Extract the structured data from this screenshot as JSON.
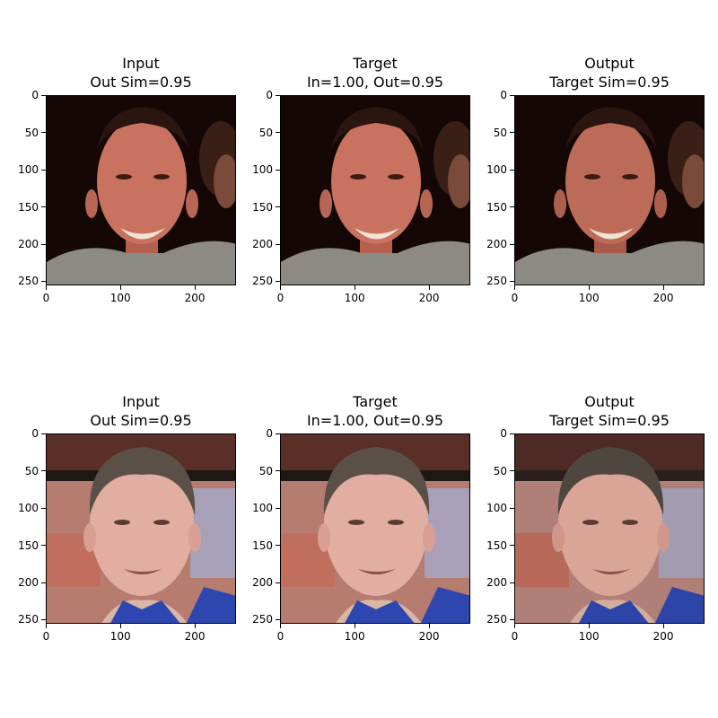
{
  "chart_data": [
    {
      "type": "image",
      "title_lines": [
        "Input",
        "Out Sim=0.95"
      ],
      "xlim": [
        0,
        255
      ],
      "ylim": [
        255,
        0
      ],
      "xticks": [
        "0",
        "100",
        "200"
      ],
      "yticks": [
        "0",
        "50",
        "100",
        "150",
        "200",
        "250"
      ],
      "image": "young man with short brown hair smiling, dark background, gray shirt, another person partially visible at right"
    },
    {
      "type": "image",
      "title_lines": [
        "Target",
        "In=1.00, Out=0.95"
      ],
      "xlim": [
        0,
        255
      ],
      "ylim": [
        255,
        0
      ],
      "xticks": [
        "0",
        "100",
        "200"
      ],
      "yticks": [
        "0",
        "50",
        "100",
        "150",
        "200",
        "250"
      ],
      "image": "young man with short brown hair smiling, dark background, gray shirt, another person partially visible at right"
    },
    {
      "type": "image",
      "title_lines": [
        "Output",
        "Target Sim=0.95"
      ],
      "xlim": [
        0,
        255
      ],
      "ylim": [
        255,
        0
      ],
      "xticks": [
        "0",
        "100",
        "200"
      ],
      "yticks": [
        "0",
        "50",
        "100",
        "150",
        "200",
        "250"
      ],
      "image": "young man with short brown hair smiling, dark background, gray shirt, another person partially visible at right"
    },
    {
      "type": "image",
      "title_lines": [
        "Input",
        "Out Sim=0.95"
      ],
      "xlim": [
        0,
        255
      ],
      "ylim": [
        255,
        0
      ],
      "xticks": [
        "0",
        "100",
        "200"
      ],
      "yticks": [
        "0",
        "50",
        "100",
        "150",
        "200",
        "250"
      ],
      "image": "middle-aged man with short graying hair smiling, blurred warm indoor background, blue collar"
    },
    {
      "type": "image",
      "title_lines": [
        "Target",
        "In=1.00, Out=0.95"
      ],
      "xlim": [
        0,
        255
      ],
      "ylim": [
        255,
        0
      ],
      "xticks": [
        "0",
        "100",
        "200"
      ],
      "yticks": [
        "0",
        "50",
        "100",
        "150",
        "200",
        "250"
      ],
      "image": "middle-aged man with short graying hair smiling, blurred warm indoor background, blue collar"
    },
    {
      "type": "image",
      "title_lines": [
        "Output",
        "Target Sim=0.95"
      ],
      "xlim": [
        0,
        255
      ],
      "ylim": [
        255,
        0
      ],
      "xticks": [
        "0",
        "100",
        "200"
      ],
      "yticks": [
        "0",
        "50",
        "100",
        "150",
        "200",
        "250"
      ],
      "image": "middle-aged man with short graying hair smiling, blurred warm indoor background, blue collar"
    }
  ]
}
